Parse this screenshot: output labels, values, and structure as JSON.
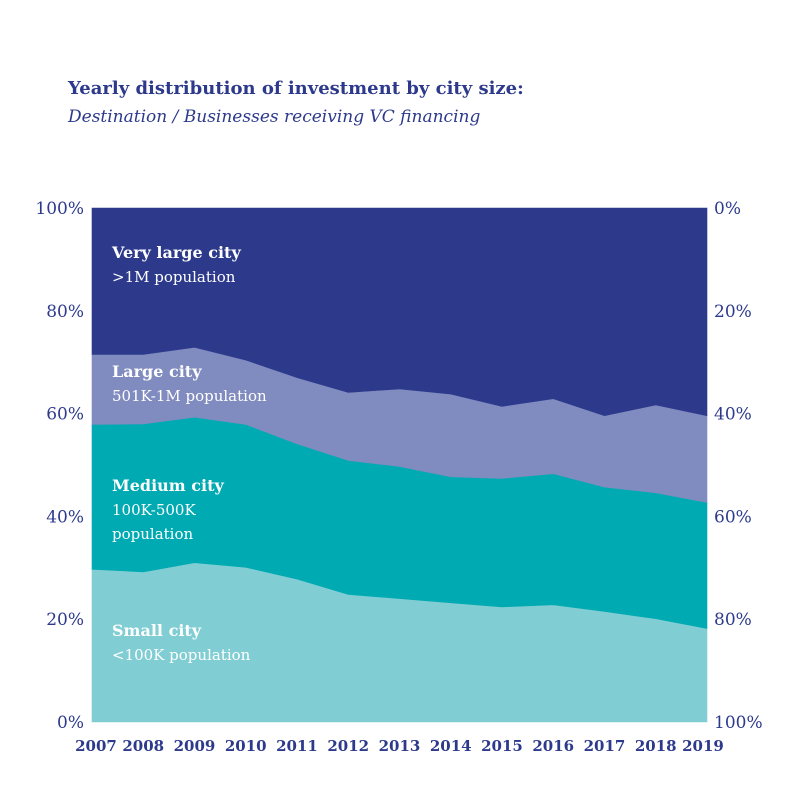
{
  "title": "Yearly distribution of investment by city size:",
  "subtitle": "Destination / Businesses receiving VC financing",
  "chart_data": {
    "type": "area",
    "stacked": true,
    "x": [
      "2007",
      "2008",
      "2009",
      "2010",
      "2011",
      "2012",
      "2013",
      "2014",
      "2015",
      "2016",
      "2017",
      "2018",
      "2019"
    ],
    "ylim": [
      0,
      100
    ],
    "left_axis_ticks": [
      "0%",
      "20%",
      "40%",
      "60%",
      "80%",
      "100%"
    ],
    "right_axis_ticks": [
      "100%",
      "80%",
      "60%",
      "40%",
      "20%",
      "0%"
    ],
    "grid": false,
    "series": [
      {
        "name": "Small city",
        "label_lines": [
          "Small city",
          "<100K population"
        ],
        "color": "#80ced3",
        "values": [
          29.7,
          29.2,
          31.0,
          30.1,
          27.8,
          24.8,
          24.0,
          23.2,
          22.4,
          22.8,
          21.5,
          20.1,
          18.2
        ]
      },
      {
        "name": "Medium city",
        "label_lines": [
          "Medium city",
          "100K-500K",
          "population"
        ],
        "color": "#00aab2",
        "values": [
          28.2,
          28.8,
          28.3,
          27.8,
          26.3,
          26.1,
          25.7,
          24.5,
          25.0,
          25.5,
          24.2,
          24.5,
          24.5
        ]
      },
      {
        "name": "Large city",
        "label_lines": [
          "Large city",
          "501K-1M population"
        ],
        "color": "#808bbf",
        "values": [
          13.6,
          13.5,
          13.6,
          12.5,
          12.9,
          13.2,
          15.1,
          16.1,
          14.0,
          14.6,
          13.9,
          17.1,
          16.9
        ]
      },
      {
        "name": "Very large city",
        "label_lines": [
          "Very large city",
          ">1M population"
        ],
        "color": "#2d3a8c",
        "values": [
          28.5,
          28.5,
          27.1,
          29.6,
          33.0,
          35.9,
          35.2,
          36.2,
          38.6,
          37.1,
          40.4,
          38.3,
          40.4
        ]
      }
    ]
  }
}
